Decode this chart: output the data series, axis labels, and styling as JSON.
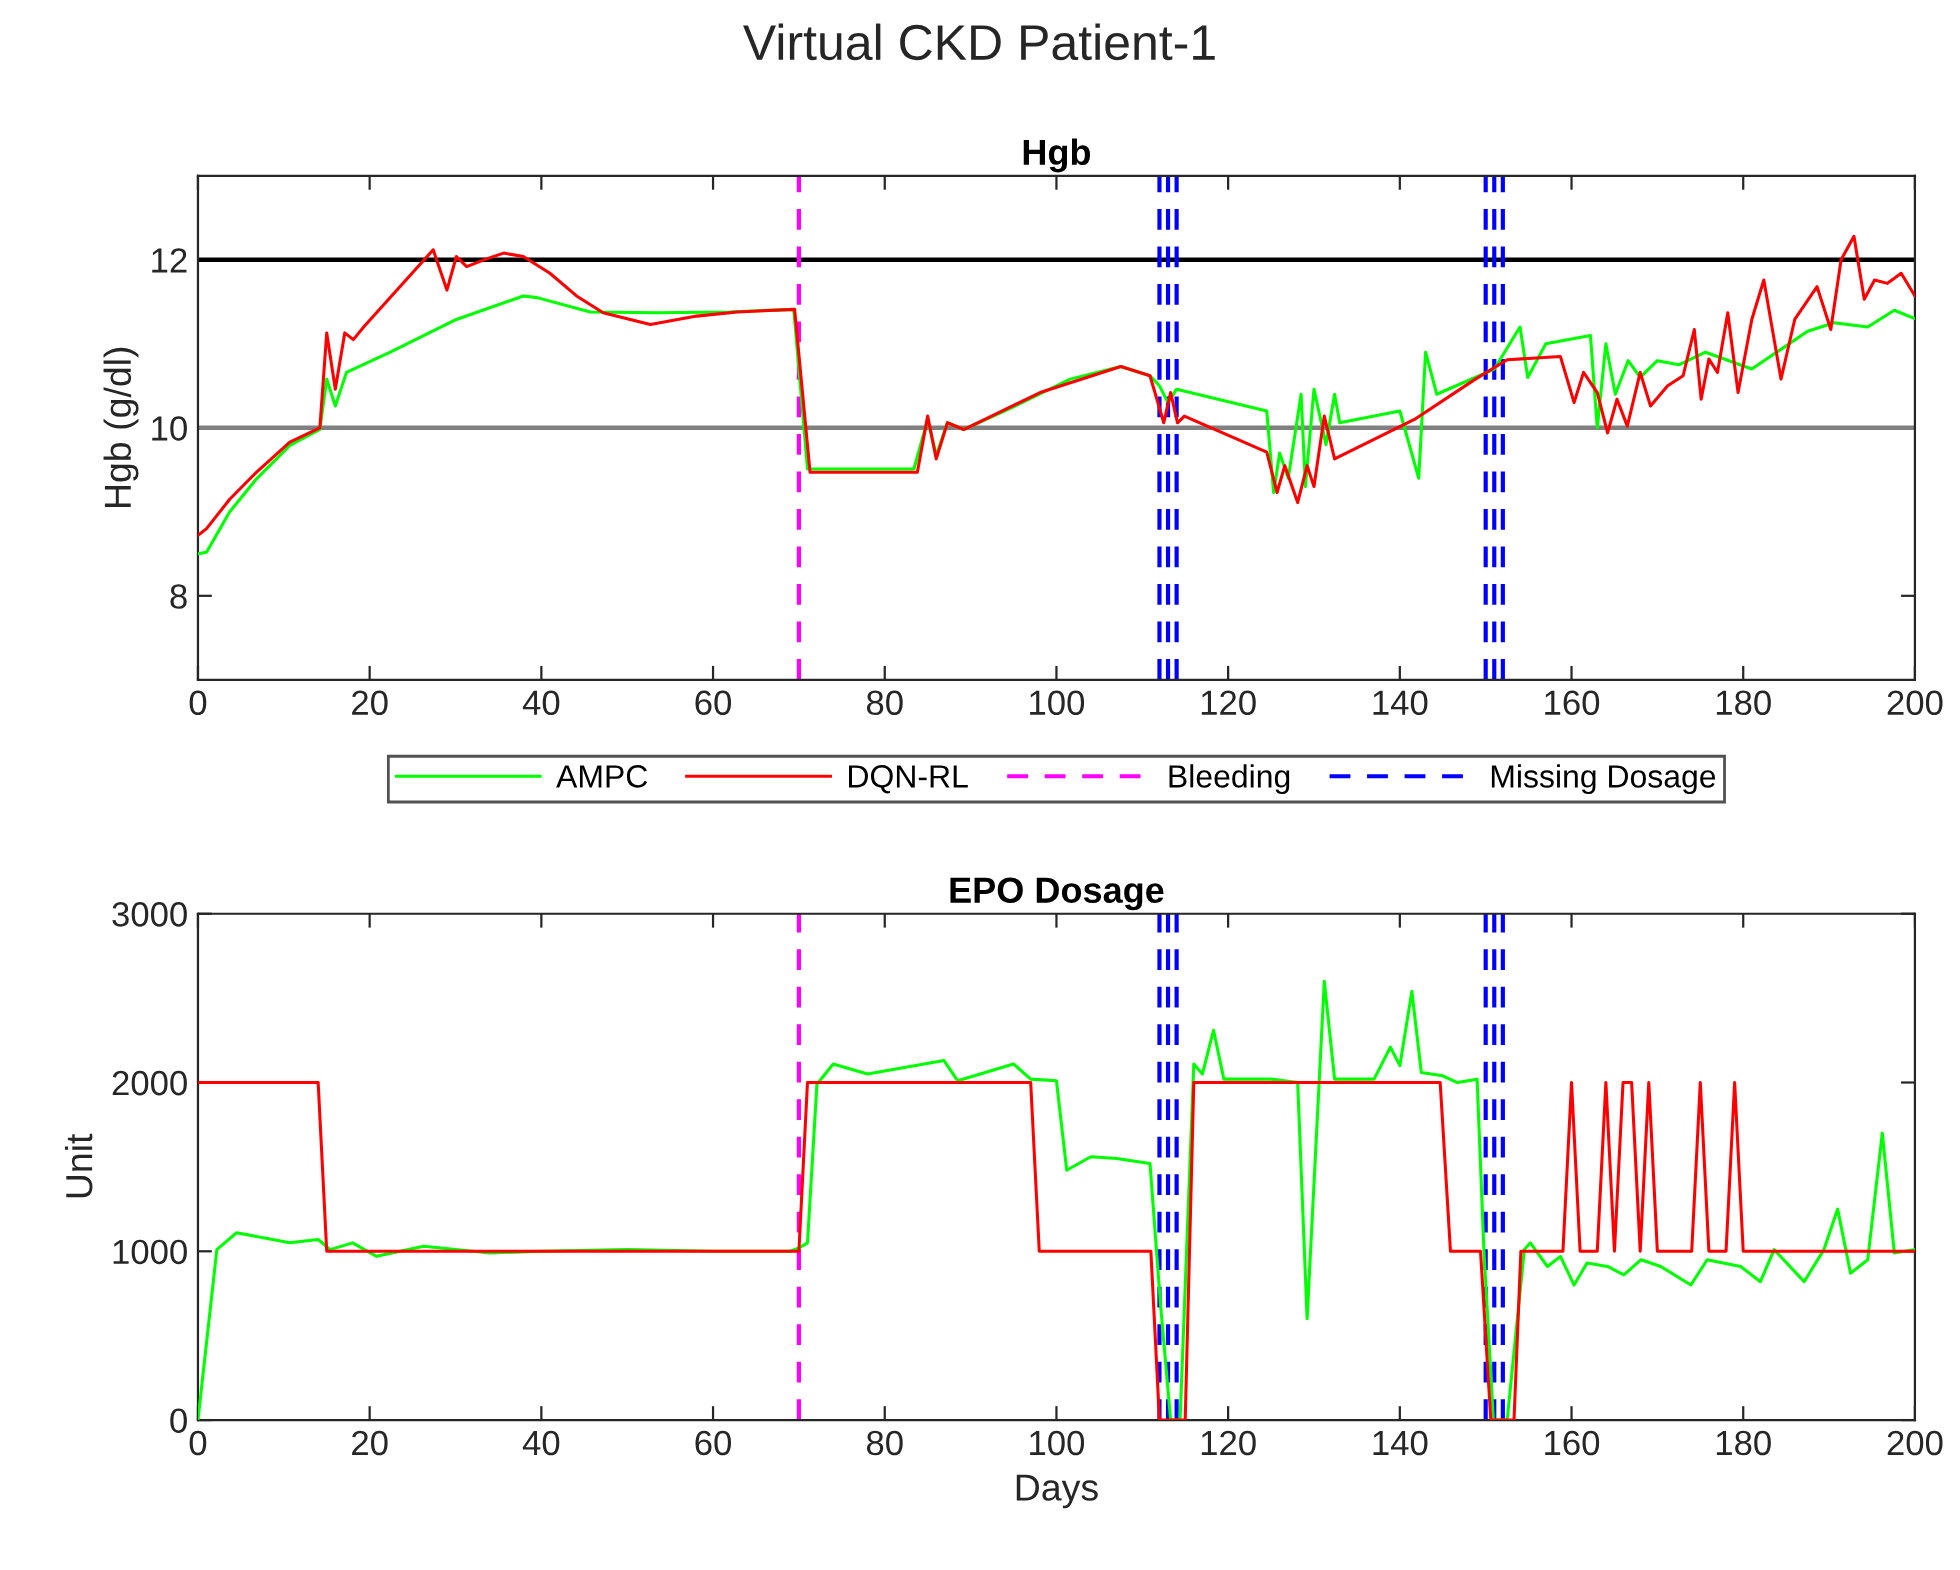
{
  "chart_data": [
    {
      "type": "line",
      "title": "Virtual CKD Patient-1",
      "subtitle": "Hgb",
      "ylabel": "Hgb (g/dl)",
      "xlim": [
        0,
        200
      ],
      "xticks": [
        0,
        20,
        40,
        60,
        80,
        100,
        120,
        140,
        160,
        180,
        200
      ],
      "ylim": [
        7,
        13
      ],
      "yticks": [
        8,
        10,
        12
      ],
      "grid": false,
      "legend": "bottom",
      "line_style": "solid",
      "series": [
        {
          "name": "AMPC",
          "color": "#00ff00",
          "x": [
            0,
            1,
            3.7,
            6.8,
            10.7,
            14.2,
            15,
            16,
            17.3,
            22.4,
            30.1,
            37.9,
            39.5,
            45.7,
            53.5,
            62,
            69.4,
            71,
            83.4,
            85,
            86,
            87.3,
            89.2,
            95,
            101.6,
            107.5,
            110.9,
            112,
            113,
            114,
            124.5,
            125.3,
            126,
            127,
            128.5,
            129,
            130,
            131.4,
            132.4,
            133,
            140,
            142.2,
            143,
            144.3,
            151,
            154,
            154.9,
            157,
            162.2,
            163,
            164,
            165.1,
            166.6,
            168,
            170,
            172.5,
            175.6,
            181,
            187.5,
            190.6,
            194.5,
            197.6,
            200
          ],
          "values": [
            8.5,
            8.52,
            9.0,
            9.39,
            9.79,
            9.98,
            10.58,
            10.26,
            10.66,
            10.9,
            11.29,
            11.57,
            11.55,
            11.38,
            11.37,
            11.38,
            11.41,
            9.51,
            9.51,
            10.1,
            9.67,
            10.06,
            9.98,
            10.25,
            10.58,
            10.73,
            10.62,
            10.5,
            10.3,
            10.46,
            10.2,
            9.23,
            9.7,
            9.4,
            10.4,
            9.3,
            10.46,
            9.8,
            10.4,
            10.06,
            10.2,
            9.4,
            10.9,
            10.4,
            10.7,
            11.2,
            10.6,
            11.0,
            11.1,
            10.0,
            11.0,
            10.4,
            10.8,
            10.6,
            10.8,
            10.75,
            10.9,
            10.7,
            11.15,
            11.25,
            11.2,
            11.4,
            11.3
          ]
        },
        {
          "name": "DQN-RL",
          "color": "#ff0000",
          "x": [
            0,
            1,
            3.7,
            6.8,
            10.7,
            14.2,
            15,
            16,
            17.1,
            18.1,
            19.3,
            27.4,
            29,
            30.1,
            31.3,
            33.3,
            35.6,
            37.9,
            41,
            44.1,
            47.2,
            52.7,
            58.1,
            62.8,
            69.5,
            71.3,
            83.8,
            85,
            86,
            87.3,
            89.2,
            98.1,
            107.5,
            110.9,
            112.5,
            113.3,
            114.1,
            114.9,
            124.5,
            125.7,
            126.6,
            128.1,
            129.2,
            130,
            131.2,
            132.4,
            141.7,
            148.8,
            152.5,
            158.7,
            160.3,
            161.4,
            163,
            164.2,
            165.3,
            166.5,
            168,
            169.2,
            171.2,
            173,
            174.3,
            175.1,
            176,
            177,
            178.2,
            179.4,
            181,
            182.4,
            184.4,
            186,
            188.6,
            190.2,
            191.4,
            192.9,
            194.1,
            195.3,
            196.8,
            198.4,
            200
          ],
          "values": [
            8.72,
            8.8,
            9.15,
            9.47,
            9.83,
            10.0,
            11.13,
            10.46,
            11.13,
            11.05,
            11.2,
            12.12,
            11.64,
            12.04,
            11.92,
            12.0,
            12.08,
            12.04,
            11.84,
            11.57,
            11.37,
            11.23,
            11.33,
            11.38,
            11.41,
            9.47,
            9.47,
            10.14,
            9.63,
            10.06,
            9.98,
            10.42,
            10.73,
            10.62,
            10.06,
            10.42,
            10.06,
            10.14,
            9.71,
            9.23,
            9.55,
            9.11,
            9.55,
            9.3,
            10.14,
            9.63,
            10.1,
            10.58,
            10.81,
            10.85,
            10.3,
            10.66,
            10.42,
            9.94,
            10.34,
            10.02,
            10.66,
            10.26,
            10.5,
            10.62,
            11.17,
            10.34,
            10.82,
            10.66,
            11.37,
            10.42,
            11.29,
            11.76,
            10.58,
            11.29,
            11.68,
            11.17,
            12.0,
            12.28,
            11.53,
            11.76,
            11.72,
            11.84,
            11.57
          ]
        }
      ],
      "ref_lines": [
        {
          "axis": "y",
          "value": 12,
          "color": "#000000",
          "line_style": "solid"
        },
        {
          "axis": "y",
          "value": 10,
          "color": "#808080",
          "line_style": "solid"
        },
        {
          "axis": "x",
          "value": 70,
          "label": "Bleeding",
          "color": "#ff00ff",
          "line_style": "dashed"
        },
        {
          "axis": "x",
          "value": 112,
          "label": "Missing Dosage",
          "color": "#0000ff",
          "line_style": "dashed"
        },
        {
          "axis": "x",
          "value": 113,
          "color": "#0000ff",
          "line_style": "dashed"
        },
        {
          "axis": "x",
          "value": 114,
          "color": "#0000ff",
          "line_style": "dashed"
        },
        {
          "axis": "x",
          "value": 150,
          "color": "#0000ff",
          "line_style": "dashed"
        },
        {
          "axis": "x",
          "value": 151,
          "color": "#0000ff",
          "line_style": "dashed"
        },
        {
          "axis": "x",
          "value": 152,
          "color": "#0000ff",
          "line_style": "dashed"
        }
      ]
    },
    {
      "type": "line",
      "title": "EPO Dosage",
      "xlabel": "Days",
      "ylabel": "Unit",
      "xlim": [
        0,
        200
      ],
      "xticks": [
        0,
        20,
        40,
        60,
        80,
        100,
        120,
        140,
        160,
        180,
        200
      ],
      "ylim": [
        0,
        3000
      ],
      "yticks": [
        0,
        1000,
        2000,
        3000
      ],
      "grid": false,
      "line_style": "solid",
      "series": [
        {
          "color": "#00ff00",
          "x": [
            0,
            2.2,
            4.5,
            10.7,
            14,
            15.4,
            18,
            20.8,
            26.3,
            34,
            40,
            50,
            60,
            69,
            70,
            71,
            72.1,
            74,
            78,
            86.9,
            88.5,
            95,
            97,
            100,
            101.2,
            104,
            107,
            110.9,
            112.1,
            113.3,
            114.4,
            116,
            117,
            118.3,
            119.5,
            125,
            128.1,
            129.2,
            131.2,
            132.4,
            137,
            138.9,
            140,
            141.4,
            142.5,
            145,
            146.7,
            149,
            149.8,
            150.9,
            152.5,
            154.5,
            155.2,
            157.2,
            158.7,
            160.3,
            161.8,
            164.2,
            166.1,
            168.1,
            170.4,
            173.9,
            175.8,
            179.7,
            182,
            183.6,
            187.1,
            189.4,
            191,
            192.5,
            194.5,
            196.2,
            197.6,
            199.9
          ],
          "values": [
            0,
            1010,
            1110,
            1050,
            1070,
            1010,
            1050,
            970,
            1030,
            990,
            1000,
            1010,
            1000,
            1000,
            1020,
            1050,
            1990,
            2110,
            2050,
            2130,
            2010,
            2110,
            2020,
            2010,
            1480,
            1560,
            1550,
            1520,
            700,
            0,
            0,
            2110,
            2050,
            2310,
            2020,
            2020,
            2000,
            600,
            2600,
            2020,
            2020,
            2210,
            2100,
            2540,
            2060,
            2040,
            2000,
            2020,
            1000,
            0,
            0,
            1010,
            1050,
            910,
            970,
            800,
            930,
            910,
            860,
            950,
            910,
            800,
            950,
            910,
            820,
            1010,
            820,
            1010,
            1250,
            870,
            950,
            1700,
            990,
            1010
          ]
        },
        {
          "color": "#ff0000",
          "x": [
            0,
            14,
            15,
            70,
            71,
            97,
            98,
            111,
            112,
            115,
            116,
            144.7,
            145.9,
            149.4,
            150.6,
            153.3,
            154.1,
            159,
            160,
            161,
            163,
            164,
            165,
            166,
            167,
            168,
            169,
            170,
            174,
            175,
            176,
            178,
            179,
            180,
            200
          ],
          "values": [
            2000,
            2000,
            1000,
            1000,
            2000,
            2000,
            1000,
            1000,
            0,
            0,
            2000,
            2000,
            1000,
            1000,
            0,
            0,
            1000,
            1000,
            2000,
            1000,
            1000,
            2000,
            1000,
            2000,
            2000,
            1000,
            2000,
            1000,
            1000,
            2000,
            1000,
            1000,
            2000,
            1000,
            1000
          ]
        }
      ],
      "ref_lines": [
        {
          "axis": "x",
          "value": 70,
          "color": "#ff00ff",
          "line_style": "dashed"
        },
        {
          "axis": "x",
          "value": 112,
          "color": "#0000ff",
          "line_style": "dashed"
        },
        {
          "axis": "x",
          "value": 113,
          "color": "#0000ff",
          "line_style": "dashed"
        },
        {
          "axis": "x",
          "value": 114,
          "color": "#0000ff",
          "line_style": "dashed"
        },
        {
          "axis": "x",
          "value": 150,
          "color": "#0000ff",
          "line_style": "dashed"
        },
        {
          "axis": "x",
          "value": 151,
          "color": "#0000ff",
          "line_style": "dashed"
        },
        {
          "axis": "x",
          "value": 152,
          "color": "#0000ff",
          "line_style": "dashed"
        }
      ]
    }
  ]
}
